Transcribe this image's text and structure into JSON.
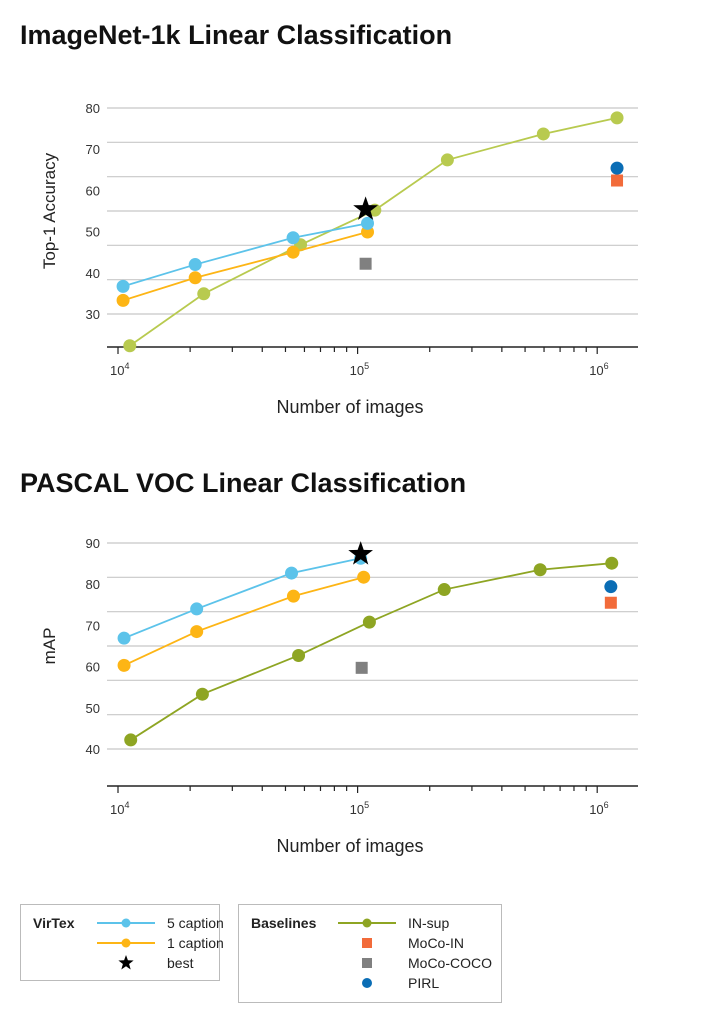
{
  "chart_data": [
    {
      "type": "line",
      "title": "ImageNet-1k Linear Classification",
      "xlabel": "Number of images",
      "ylabel": "Top-1 Accuracy",
      "xscale": "log",
      "xlim": [
        9000,
        1480000
      ],
      "ylim": [
        21.9,
        81
      ],
      "yticks": [
        80,
        70,
        60,
        50,
        40,
        30
      ],
      "xticks": [
        {
          "value": 10000,
          "base": "10",
          "exp": "4"
        },
        {
          "value": 100000,
          "base": "10",
          "exp": "5"
        },
        {
          "value": 1000000,
          "base": "10",
          "exp": "6"
        }
      ],
      "grid": true,
      "series": [
        {
          "name": "5 caption",
          "color": "#5cc3ea",
          "marker": "circle",
          "line": true,
          "x": [
            10500,
            21000,
            53800,
            110000
          ],
          "y": [
            36.7,
            42.0,
            48.5,
            52.0
          ]
        },
        {
          "name": "1 caption",
          "color": "#fdb515",
          "marker": "circle",
          "line": true,
          "x": [
            10500,
            21000,
            53800,
            110000
          ],
          "y": [
            33.3,
            38.8,
            45.0,
            49.9
          ]
        },
        {
          "name": "IN-sup",
          "color": "#b8ca4f",
          "marker": "circle",
          "line": true,
          "x": [
            11200,
            22800,
            57800,
            118000,
            237000,
            596000,
            1210000
          ],
          "y": [
            22.3,
            34.9,
            46.8,
            55.2,
            67.4,
            73.7,
            77.6
          ]
        },
        {
          "name": "best",
          "color": "#000000",
          "marker": "star",
          "line": false,
          "x": [
            108000
          ],
          "y": [
            55.4
          ]
        },
        {
          "name": "MoCo-IN",
          "color": "#f26b3a",
          "marker": "square",
          "line": false,
          "x": [
            1210000
          ],
          "y": [
            62.4
          ]
        },
        {
          "name": "MoCo-COCO",
          "color": "#808080",
          "marker": "square",
          "line": false,
          "x": [
            108000
          ],
          "y": [
            42.2
          ]
        },
        {
          "name": "PIRL",
          "color": "#0a6db5",
          "marker": "circle",
          "line": false,
          "x": [
            1210000
          ],
          "y": [
            65.4
          ]
        }
      ]
    },
    {
      "type": "line",
      "title": "PASCAL VOC Linear Classification",
      "xlabel": "Number of images",
      "ylabel": "mAP",
      "xscale": "log",
      "xlim": [
        9000,
        1480000
      ],
      "ylim": [
        31.5,
        91
      ],
      "yticks": [
        90,
        80,
        70,
        60,
        50,
        40
      ],
      "xticks": [
        {
          "value": 10000,
          "base": "10",
          "exp": "4"
        },
        {
          "value": 100000,
          "base": "10",
          "exp": "5"
        },
        {
          "value": 1000000,
          "base": "10",
          "exp": "6"
        }
      ],
      "grid": true,
      "series": [
        {
          "name": "5 caption",
          "color": "#5cc3ea",
          "marker": "circle",
          "line": true,
          "x": [
            10600,
            21300,
            53000,
            103000
          ],
          "y": [
            66.9,
            74.0,
            82.7,
            86.3
          ]
        },
        {
          "name": "1 caption",
          "color": "#fdb515",
          "marker": "circle",
          "line": true,
          "x": [
            10600,
            21300,
            54000,
            106000
          ],
          "y": [
            60.3,
            68.5,
            77.1,
            81.7
          ]
        },
        {
          "name": "IN-sup",
          "color": "#8ea523",
          "marker": "circle",
          "line": true,
          "x": [
            11300,
            22500,
            56700,
            112000,
            230000,
            578000,
            1150000
          ],
          "y": [
            42.2,
            53.3,
            62.7,
            70.8,
            78.7,
            83.5,
            85.1
          ]
        },
        {
          "name": "best",
          "color": "#000000",
          "marker": "star",
          "line": false,
          "x": [
            103000
          ],
          "y": [
            87.3
          ]
        },
        {
          "name": "MoCo-IN",
          "color": "#f26b3a",
          "marker": "square",
          "line": false,
          "x": [
            1140000
          ],
          "y": [
            75.5
          ]
        },
        {
          "name": "MoCo-COCO",
          "color": "#808080",
          "marker": "square",
          "line": false,
          "x": [
            104000
          ],
          "y": [
            59.7
          ]
        },
        {
          "name": "PIRL",
          "color": "#0a6db5",
          "marker": "circle",
          "line": false,
          "x": [
            1140000
          ],
          "y": [
            79.4
          ]
        }
      ]
    }
  ],
  "legend": {
    "virtex": {
      "title": "VirTex",
      "items": [
        {
          "label": "5 caption",
          "color": "#5cc3ea",
          "kind": "line-circle"
        },
        {
          "label": "1 caption",
          "color": "#fdb515",
          "kind": "line-circle"
        },
        {
          "label": "best",
          "color": "#000000",
          "kind": "star"
        }
      ]
    },
    "baselines": {
      "title": "Baselines",
      "items": [
        {
          "label": "IN-sup",
          "color": "#8ea523",
          "kind": "line-circle"
        },
        {
          "label": "MoCo-IN",
          "color": "#f26b3a",
          "kind": "square"
        },
        {
          "label": "MoCo-COCO",
          "color": "#808080",
          "kind": "square"
        },
        {
          "label": "PIRL",
          "color": "#0a6db5",
          "kind": "circle"
        }
      ]
    }
  }
}
